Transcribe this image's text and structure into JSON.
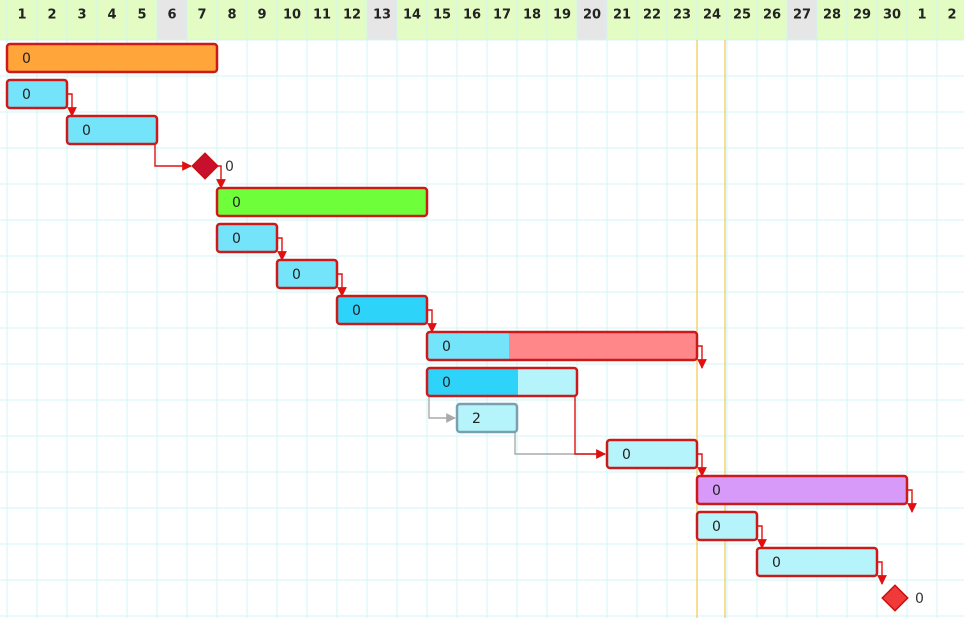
{
  "header": {
    "days": [
      "1",
      "2",
      "3",
      "4",
      "5",
      "6",
      "7",
      "8",
      "9",
      "10",
      "11",
      "12",
      "13",
      "14",
      "15",
      "16",
      "17",
      "18",
      "19",
      "20",
      "21",
      "22",
      "23",
      "24",
      "25",
      "26",
      "27",
      "28",
      "29",
      "30",
      "1",
      "2"
    ],
    "shaded": [
      5,
      12,
      19,
      26
    ]
  },
  "tasks": [
    {
      "label": "0",
      "start": 0,
      "span": 7,
      "color": "#ffa53a"
    },
    {
      "label": "0",
      "start": 0,
      "span": 2,
      "color": "#74e4fa"
    },
    {
      "label": "0",
      "start": 2,
      "span": 3,
      "color": "#74e4fa"
    },
    {
      "label": "0",
      "milestone": true,
      "start": 7,
      "color": "#c8102e"
    },
    {
      "label": "0",
      "start": 7,
      "span": 7,
      "color": "#6eff3a"
    },
    {
      "label": "0",
      "start": 7,
      "span": 2,
      "color": "#74e4fa"
    },
    {
      "label": "0",
      "start": 9,
      "span": 2,
      "color": "#74e4fa"
    },
    {
      "label": "0",
      "start": 11,
      "span": 3,
      "color": "#2ed3fa"
    },
    {
      "label": "0",
      "start": 14,
      "span": 9,
      "color": "#ff878a",
      "progress": 30,
      "progress_color": "#74e4fa"
    },
    {
      "label": "0",
      "start": 14,
      "span": 5,
      "color": "#b6f4fb",
      "progress": 60,
      "progress_color": "#2ed3fa"
    },
    {
      "label": "2",
      "start": 15,
      "span": 2,
      "color": "#b6f4fb",
      "border": "#7aa0b0"
    },
    {
      "label": "0",
      "start": 20,
      "span": 3,
      "color": "#b6f4fb"
    },
    {
      "label": "0",
      "start": 23,
      "span": 7,
      "color": "#d89af8"
    },
    {
      "label": "0",
      "start": 23,
      "span": 2,
      "color": "#b6f4fb"
    },
    {
      "label": "0",
      "start": 25,
      "span": 4,
      "color": "#b6f4fb"
    },
    {
      "label": "0",
      "milestone": true,
      "start": 30,
      "color": "#f03a3a"
    }
  ]
}
